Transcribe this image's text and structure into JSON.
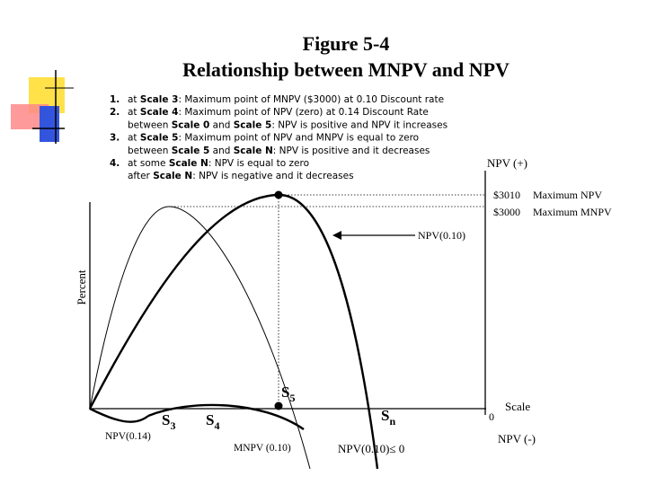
{
  "title": {
    "line1": "Figure 5-4",
    "line2": "Relationship between MNPV and NPV"
  },
  "notes": [
    {
      "number": "1.",
      "lines": [
        [
          {
            "text": "at "
          },
          {
            "text": "Scale 3",
            "bold": true
          },
          {
            "text": ": Maximum point of MNPV ($3000) at 0.10 Discount rate"
          }
        ]
      ]
    },
    {
      "number": "2.",
      "lines": [
        [
          {
            "text": "at "
          },
          {
            "text": "Scale 4",
            "bold": true
          },
          {
            "text": ": Maximum point of NPV (zero) at 0.14 Discount Rate"
          }
        ],
        [
          {
            "text": "between "
          },
          {
            "text": "Scale 0",
            "bold": true
          },
          {
            "text": " and "
          },
          {
            "text": "Scale 5",
            "bold": true
          },
          {
            "text": ": NPV is positive and NPV it increases"
          }
        ]
      ]
    },
    {
      "number": "3.",
      "lines": [
        [
          {
            "text": "at "
          },
          {
            "text": "Scale 5",
            "bold": true
          },
          {
            "text": ": Maximum point of NPV and MNPV is equal to zero"
          }
        ],
        [
          {
            "text": "between "
          },
          {
            "text": "Scale 5",
            "bold": true
          },
          {
            "text": " and "
          },
          {
            "text": "Scale N",
            "bold": true
          },
          {
            "text": ": NPV is positive and it decreases"
          }
        ]
      ]
    },
    {
      "number": "4.",
      "lines": [
        [
          {
            "text": "at some "
          },
          {
            "text": "Scale N",
            "bold": true
          },
          {
            "text": ": NPV is equal to zero"
          }
        ],
        [
          {
            "text": "after "
          },
          {
            "text": "Scale N",
            "bold": true
          },
          {
            "text": ": NPV is negative and it decreases"
          }
        ]
      ]
    }
  ],
  "labels": {
    "npv_plus": "NPV (+)",
    "max_npv_value": "$3010",
    "max_npv": "Maximum NPV",
    "max_mnpv_value": "$3000",
    "max_mnpv": "Maximum MNPV",
    "npv_010": "NPV(0.10)",
    "y_axis": "Percent",
    "zero": "0",
    "scale": "Scale",
    "npv_minus": "NPV (-)",
    "npv_014": "NPV(0.14)",
    "mnpv_010": "MNPV (0.10)",
    "npv_nonpositive": "NPV(0.10)≤ 0",
    "s5": {
      "base": "S",
      "sub": "5"
    },
    "s3": {
      "base": "S",
      "sub": "3"
    },
    "s4": {
      "base": "S",
      "sub": "4"
    },
    "sn": {
      "base": "S",
      "sub": "n"
    }
  }
}
